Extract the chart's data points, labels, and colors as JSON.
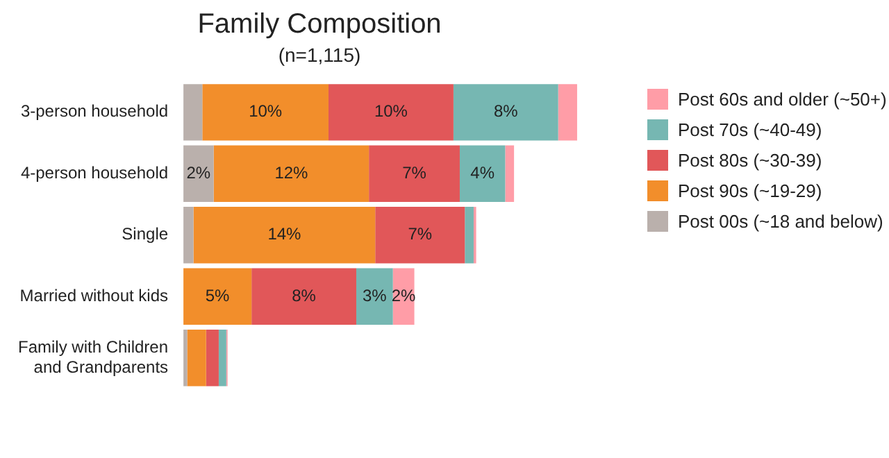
{
  "chart_data": {
    "type": "bar",
    "orientation": "horizontal",
    "stacked": true,
    "title": "Family Composition",
    "subtitle": "(n=1,115)",
    "categories": [
      "3-person household",
      "4-person household",
      "Single",
      "Married without kids",
      "Family with Children and Grandparents"
    ],
    "series": [
      {
        "name": "Post 00s (~18 and below)",
        "color": "#bab0ac",
        "values": [
          1.5,
          2.4,
          0.8,
          null,
          0.3
        ],
        "value_labels": [
          null,
          "2%",
          null,
          null,
          null
        ]
      },
      {
        "name": "Post 90s (~19-29)",
        "color": "#f28e2b",
        "values": [
          10.0,
          12.3,
          14.4,
          5.4,
          1.5
        ],
        "value_labels": [
          "10%",
          "12%",
          "14%",
          "5%",
          null
        ]
      },
      {
        "name": "Post 80s (~30-39)",
        "color": "#e15759",
        "values": [
          9.9,
          7.2,
          7.1,
          8.3,
          1.0
        ],
        "value_labels": [
          "10%",
          "7%",
          "7%",
          "8%",
          null
        ]
      },
      {
        "name": "Post 70s (~40-49)",
        "color": "#76b7b2",
        "values": [
          8.3,
          3.6,
          0.7,
          2.9,
          0.6
        ],
        "value_labels": [
          "8%",
          "4%",
          null,
          "3%",
          null
        ]
      },
      {
        "name": "Post 60s and older (~50+)",
        "color": "#ff9da7",
        "values": [
          1.5,
          0.7,
          0.2,
          1.7,
          0.1
        ],
        "value_labels": [
          null,
          null,
          null,
          "2%",
          null
        ]
      }
    ],
    "legend": "right"
  }
}
